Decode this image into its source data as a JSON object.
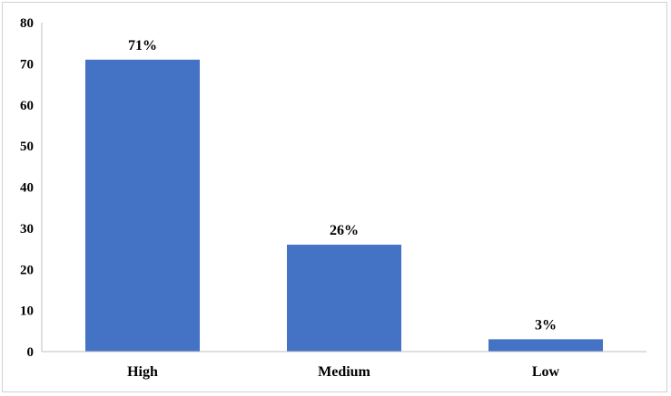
{
  "chart_data": {
    "type": "bar",
    "categories": [
      "High",
      "Medium",
      "Low"
    ],
    "values": [
      71,
      26,
      3
    ],
    "data_labels": [
      "71%",
      "26%",
      "3%"
    ],
    "title": "",
    "xlabel": "",
    "ylabel": "",
    "ylim": [
      0,
      80
    ],
    "yticks": [
      "0",
      "10",
      "20",
      "30",
      "40",
      "50",
      "60",
      "70",
      "80"
    ],
    "bar_color": "#4472c4",
    "grid": false,
    "legend": "none"
  }
}
